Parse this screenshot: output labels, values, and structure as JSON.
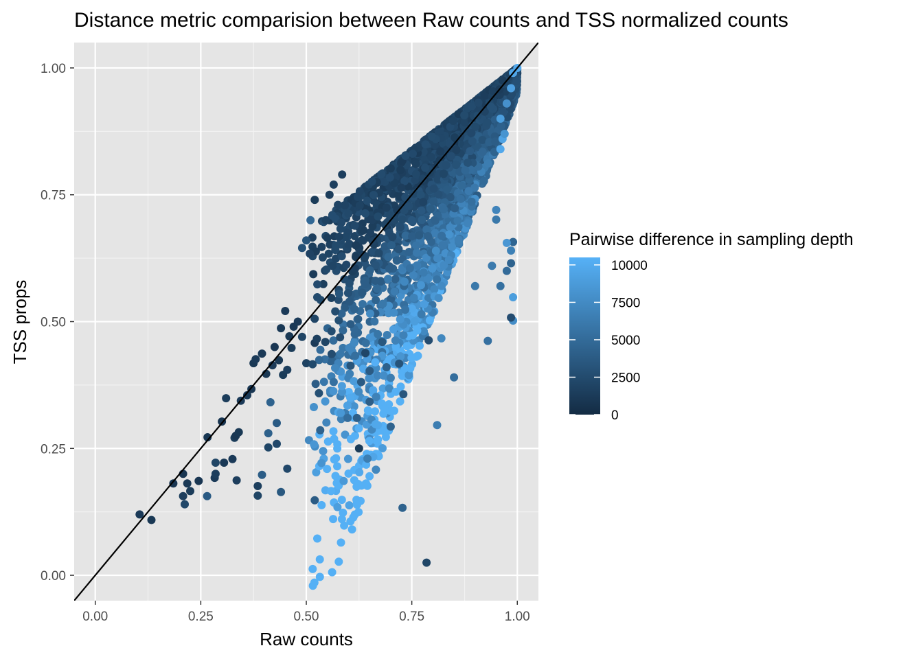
{
  "chart_data": {
    "type": "scatter",
    "title": "Distance metric comparision between Raw counts and TSS normalized counts",
    "xlabel": "Raw counts",
    "ylabel": "TSS props",
    "xlim": [
      -0.05,
      1.05
    ],
    "ylim": [
      -0.05,
      1.05
    ],
    "x_ticks": [
      "0.00",
      "0.25",
      "0.50",
      "0.75",
      "1.00"
    ],
    "y_ticks": [
      "0.00",
      "0.25",
      "0.50",
      "0.75",
      "1.00"
    ],
    "grid": true,
    "background": "#e5e5e5",
    "reference_line": {
      "slope": 1,
      "intercept": 0,
      "color": "#000000"
    },
    "color_scale": {
      "title": "Pairwise difference in sampling depth",
      "min": 0,
      "max": 10500,
      "breaks": [
        "0",
        "2500",
        "5000",
        "7500",
        "10000"
      ],
      "low_color": "#132b43",
      "high_color": "#56b1f7"
    },
    "legend_position": "right",
    "points": [
      [
        0.105,
        0.12,
        1200
      ],
      [
        0.133,
        0.109,
        1000
      ],
      [
        0.185,
        0.181,
        800
      ],
      [
        0.208,
        0.2,
        900
      ],
      [
        0.208,
        0.156,
        1500
      ],
      [
        0.212,
        0.14,
        2200
      ],
      [
        0.218,
        0.181,
        1100
      ],
      [
        0.225,
        0.166,
        1300
      ],
      [
        0.245,
        0.186,
        900
      ],
      [
        0.265,
        0.156,
        3800
      ],
      [
        0.266,
        0.272,
        1000
      ],
      [
        0.283,
        0.192,
        1200
      ],
      [
        0.285,
        0.222,
        2000
      ],
      [
        0.285,
        0.2,
        1500
      ],
      [
        0.3,
        0.303,
        800
      ],
      [
        0.305,
        0.222,
        1100
      ],
      [
        0.31,
        0.349,
        1400
      ],
      [
        0.325,
        0.229,
        1200
      ],
      [
        0.33,
        0.271,
        1300
      ],
      [
        0.333,
        0.275,
        900
      ],
      [
        0.335,
        0.187,
        1500
      ],
      [
        0.34,
        0.282,
        1000
      ],
      [
        0.345,
        0.344,
        1200
      ],
      [
        0.36,
        0.355,
        1100
      ],
      [
        0.37,
        0.367,
        900
      ],
      [
        0.375,
        0.418,
        1000
      ],
      [
        0.38,
        0.426,
        1200
      ],
      [
        0.385,
        0.176,
        1600
      ],
      [
        0.385,
        0.157,
        2000
      ],
      [
        0.395,
        0.198,
        3900
      ],
      [
        0.395,
        0.437,
        1100
      ],
      [
        0.405,
        0.397,
        1000
      ],
      [
        0.41,
        0.28,
        4200
      ],
      [
        0.41,
        0.252,
        2100
      ],
      [
        0.415,
        0.341,
        4300
      ],
      [
        0.42,
        0.414,
        1200
      ],
      [
        0.425,
        0.45,
        900
      ],
      [
        0.43,
        0.3,
        3800
      ],
      [
        0.43,
        0.259,
        2300
      ],
      [
        0.435,
        0.424,
        1000
      ],
      [
        0.44,
        0.164,
        3500
      ],
      [
        0.44,
        0.487,
        1100
      ],
      [
        0.445,
        0.395,
        1300
      ],
      [
        0.45,
        0.521,
        1200
      ],
      [
        0.455,
        0.21,
        2200
      ],
      [
        0.455,
        0.405,
        1500
      ],
      [
        0.46,
        0.471,
        1000
      ],
      [
        0.465,
        0.448,
        1300
      ],
      [
        0.47,
        0.49,
        1100
      ],
      [
        0.48,
        0.5,
        1200
      ],
      [
        0.49,
        0.47,
        2000
      ],
      [
        0.5,
        0.418,
        1800
      ],
      [
        0.515,
        0.416,
        2400
      ],
      [
        0.52,
        0.148,
        3800
      ],
      [
        0.52,
        0.458,
        1200
      ],
      [
        0.525,
        0.466,
        1600
      ],
      [
        0.53,
        0.359,
        2800
      ],
      [
        0.533,
        0.286,
        4300
      ],
      [
        0.545,
        0.46,
        2000
      ],
      [
        0.56,
        0.436,
        2600
      ],
      [
        0.565,
        0.381,
        5400
      ],
      [
        0.58,
        0.469,
        2600
      ],
      [
        0.598,
        0.31,
        5200
      ],
      [
        0.605,
        0.413,
        3200
      ],
      [
        0.62,
        0.31,
        4100
      ],
      [
        0.625,
        0.25,
        1300
      ],
      [
        0.63,
        0.381,
        3800
      ],
      [
        0.64,
        0.438,
        2100
      ],
      [
        0.645,
        0.23,
        6500
      ],
      [
        0.65,
        0.342,
        4000
      ],
      [
        0.65,
        0.403,
        3800
      ],
      [
        0.665,
        0.208,
        7200
      ],
      [
        0.68,
        0.46,
        3500
      ],
      [
        0.69,
        0.41,
        4200
      ],
      [
        0.7,
        0.389,
        6400
      ],
      [
        0.7,
        0.293,
        4400
      ],
      [
        0.72,
        0.417,
        3200
      ],
      [
        0.728,
        0.133,
        4300
      ],
      [
        0.73,
        0.357,
        3400
      ],
      [
        0.785,
        0.025,
        2100
      ],
      [
        0.79,
        0.463,
        2600
      ],
      [
        0.81,
        0.296,
        6400
      ],
      [
        0.82,
        0.467,
        7200
      ],
      [
        0.85,
        0.39,
        5200
      ],
      [
        0.9,
        0.57,
        6000
      ],
      [
        0.93,
        0.462,
        5400
      ],
      [
        0.94,
        0.61,
        6200
      ],
      [
        0.96,
        0.57,
        5400
      ],
      [
        0.975,
        0.6,
        5000
      ],
      [
        0.985,
        0.615,
        4400
      ],
      [
        0.99,
        0.657,
        4600
      ],
      [
        0.99,
        0.548,
        9000
      ],
      [
        0.99,
        0.502,
        7700
      ],
      [
        0.985,
        0.508,
        2600
      ],
      [
        0.985,
        0.64,
        6700
      ],
      [
        0.975,
        0.655,
        8400
      ],
      [
        0.95,
        0.701,
        6000
      ],
      [
        0.95,
        0.72,
        7000
      ],
      [
        0.96,
        0.84,
        9800
      ],
      [
        0.965,
        0.86,
        9400
      ],
      [
        0.96,
        0.9,
        9000
      ],
      [
        0.97,
        0.87,
        8200
      ],
      [
        0.975,
        0.93,
        8000
      ],
      [
        0.985,
        0.96,
        9200
      ],
      [
        0.99,
        0.99,
        9600
      ],
      [
        1.0,
        1.0,
        9800
      ],
      [
        0.52,
        0.74,
        1300
      ],
      [
        0.546,
        0.7,
        1800
      ],
      [
        0.555,
        0.75,
        1400
      ],
      [
        0.565,
        0.77,
        1600
      ],
      [
        0.57,
        0.65,
        2400
      ],
      [
        0.575,
        0.73,
        1900
      ],
      [
        0.585,
        0.79,
        1500
      ],
      [
        0.5,
        0.66,
        3200
      ],
      [
        0.51,
        0.7,
        4800
      ],
      [
        0.49,
        0.645,
        3000
      ]
    ]
  }
}
